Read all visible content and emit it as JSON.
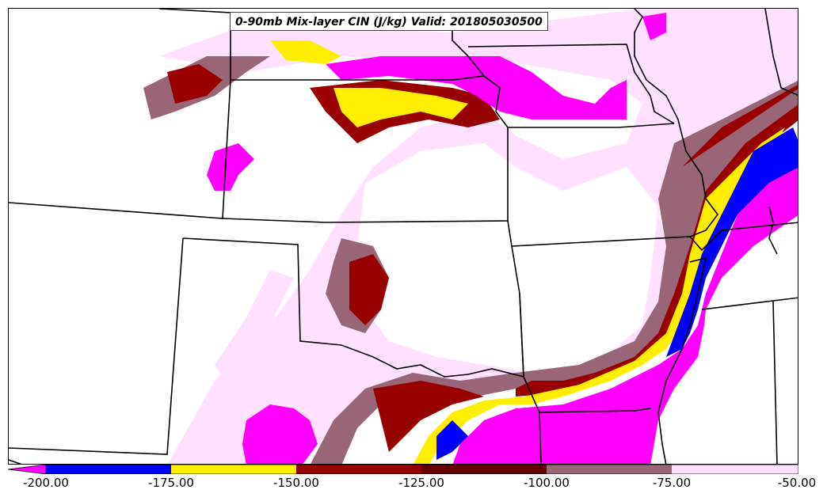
{
  "title": "0-90mb Mix-layer CIN (J/kg) Valid: 201805030500",
  "colors": {
    "below_-200": "#ff00ff",
    "-200_-175": "#0000ff",
    "-175_-150": "#ffee00",
    "-150_-125": "#990000",
    "-125_-100": "#660000",
    "-100_-75": "#996677",
    "-75_-50": "#ffe0ff",
    "border": "#000000"
  },
  "colorbar": {
    "ticks": [
      "-200.00",
      "-175.00",
      "-150.00",
      "-125.00",
      "-100.00",
      "-75.00",
      "-50.00"
    ]
  }
}
